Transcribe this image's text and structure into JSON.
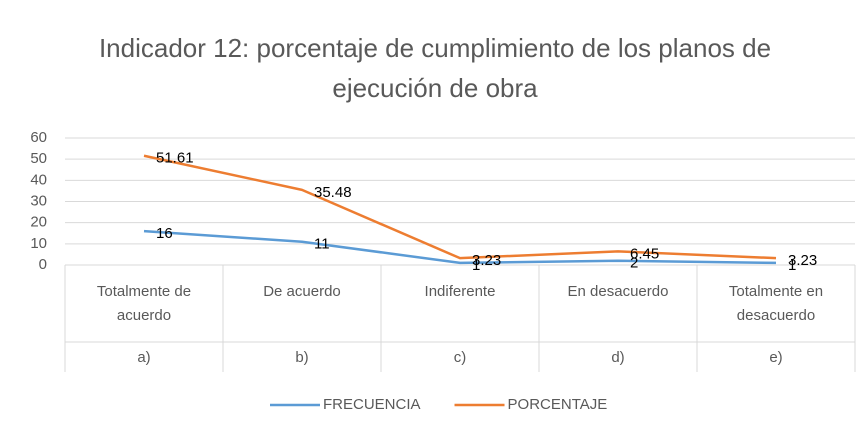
{
  "chart_data": {
    "type": "line",
    "title": "Indicador 12: porcentaje de cumplimiento de los planos de ejecución de obra",
    "categories": [
      "Totalmente de acuerdo",
      "De acuerdo",
      "Indiferente",
      "En desacuerdo",
      "Totalmente en desacuerdo"
    ],
    "subcategories": [
      "a)",
      "b)",
      "c)",
      "d)",
      "e)"
    ],
    "series": [
      {
        "name": "FRECUENCIA",
        "color": "#5b9bd5",
        "values": [
          16,
          11,
          1,
          2,
          1
        ]
      },
      {
        "name": "PORCENTAJE",
        "color": "#ed7d31",
        "values": [
          51.61,
          35.48,
          3.23,
          6.45,
          3.23
        ]
      }
    ],
    "ylim": [
      0,
      60
    ],
    "yticks": [
      0,
      10,
      20,
      30,
      40,
      50,
      60
    ],
    "grid": true,
    "legend": "bottom"
  }
}
